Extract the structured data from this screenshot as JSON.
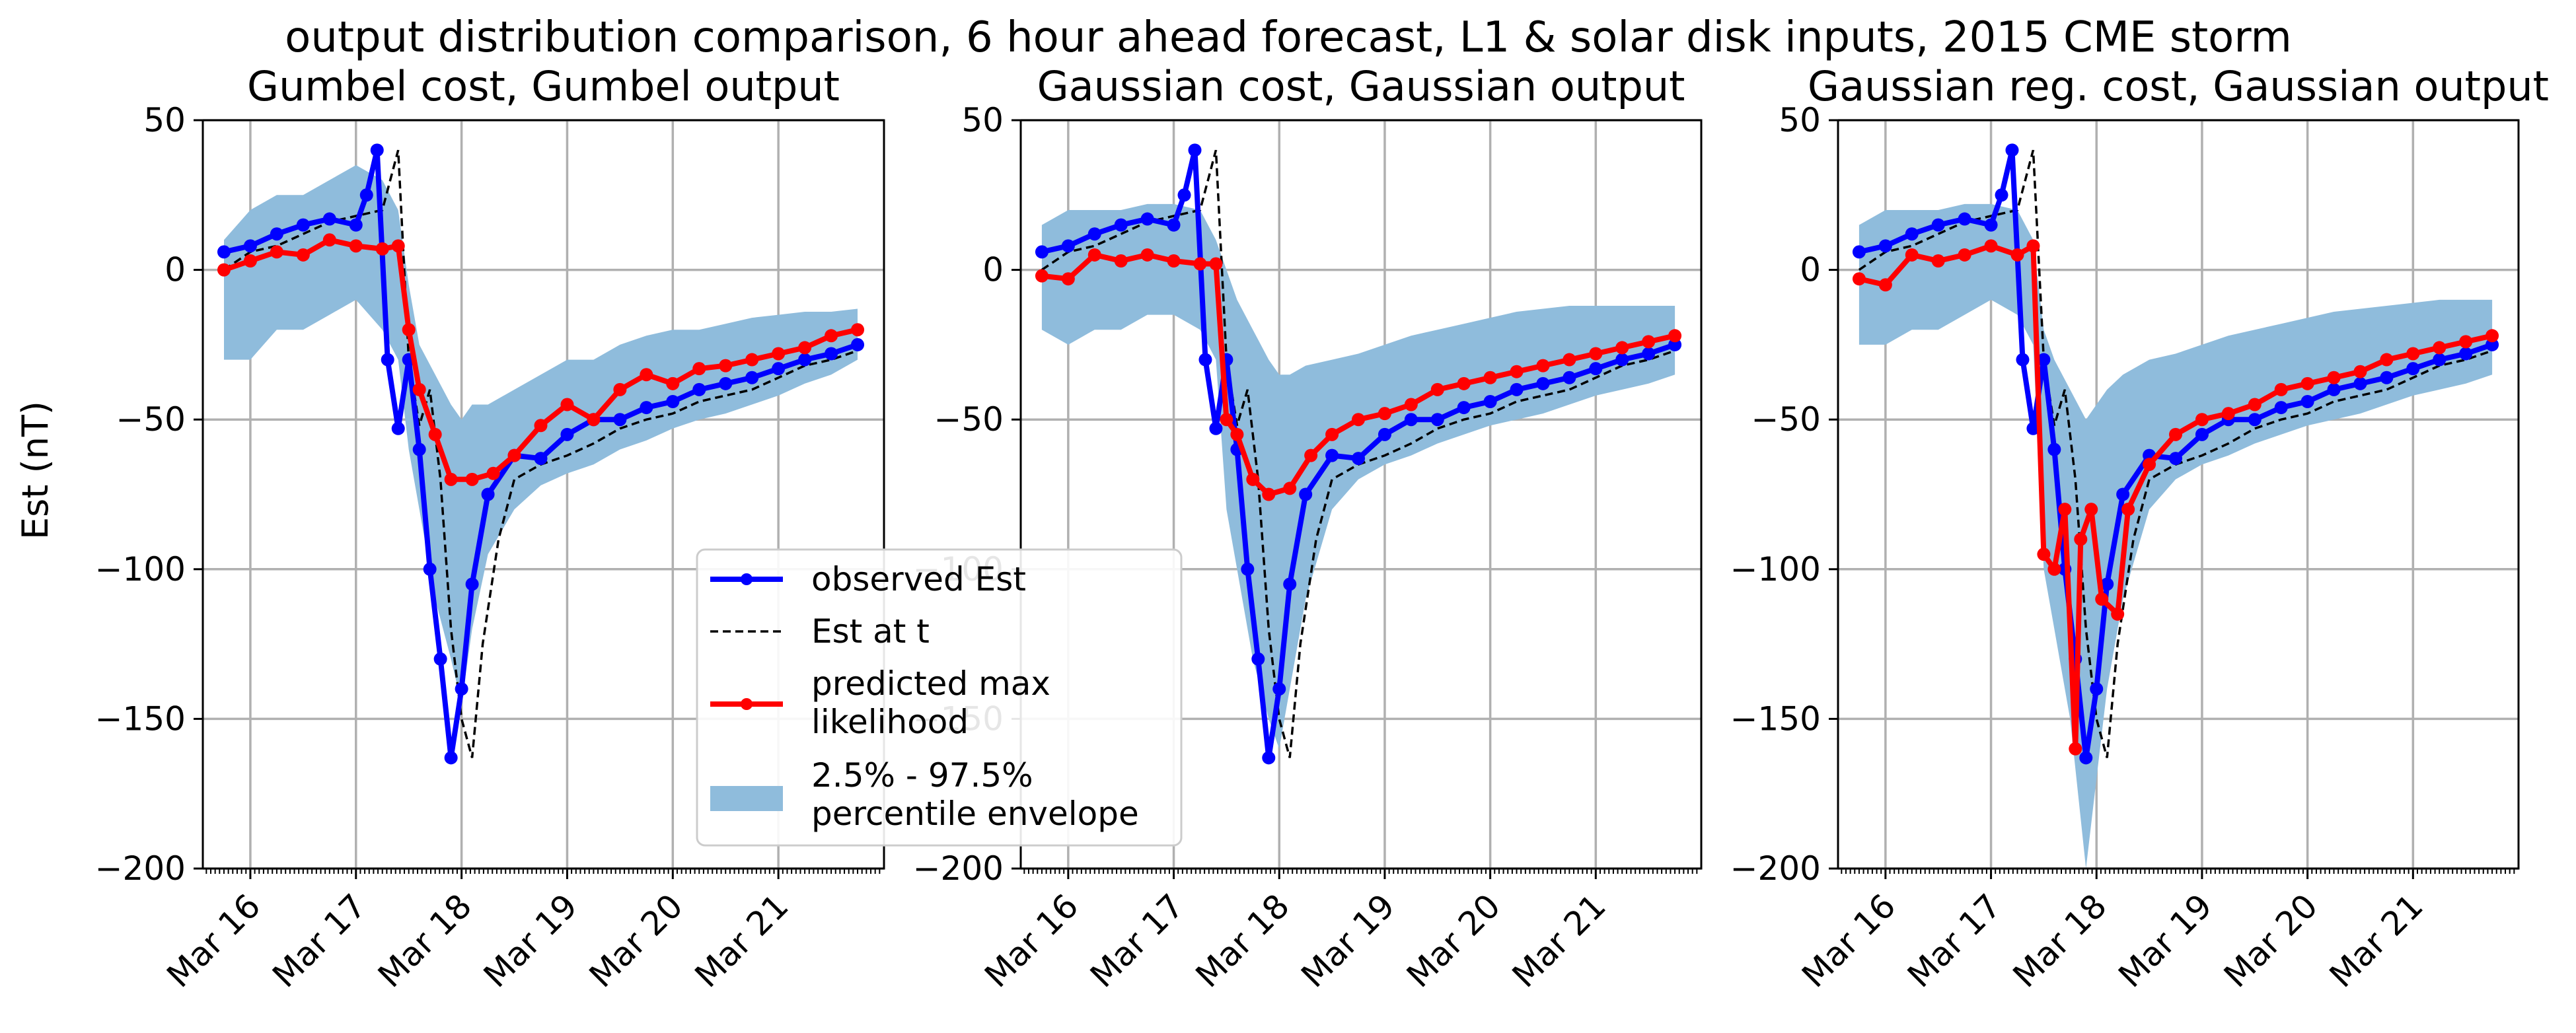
{
  "figure": {
    "title": "output distribution comparison, 6 hour ahead forecast, L1 & solar disk inputs, 2015 CME storm",
    "ylabel": "Est (nT)"
  },
  "legend": {
    "observed": "observed Est",
    "est_at_t": "Est at t",
    "predicted_line1": "predicted max",
    "predicted_line2": "likelihood",
    "envelope_line1": "2.5% - 97.5%",
    "envelope_line2": "percentile envelope"
  },
  "colors": {
    "observed": "#0000ff",
    "predicted": "#ff0000",
    "envelope": "#8fbcdc",
    "est_at_t": "#000000",
    "grid": "#b0b0b0"
  },
  "chart_data": [
    {
      "type": "line",
      "title": "Gumbel cost, Gumbel output",
      "xlabel": "",
      "ylabel": "Est (nT)",
      "ylim": [
        -200,
        50
      ],
      "xlim": [
        15.55,
        22.0
      ],
      "x_tick_values": [
        16,
        17,
        18,
        19,
        20,
        21
      ],
      "x_tick_labels": [
        "Mar 16",
        "Mar 17",
        "Mar 18",
        "Mar 19",
        "Mar 20",
        "Mar 21"
      ],
      "y_ticks": [
        -200,
        -150,
        -100,
        -50,
        0,
        50
      ],
      "grid": true,
      "legend_position": "lower-right",
      "series": [
        {
          "name": "observed Est",
          "x": [
            15.75,
            16.0,
            16.25,
            16.5,
            16.75,
            17.0,
            17.1,
            17.2,
            17.3,
            17.4,
            17.5,
            17.6,
            17.7,
            17.8,
            17.9,
            18.0,
            18.1,
            18.25,
            18.5,
            18.75,
            19.0,
            19.25,
            19.5,
            19.75,
            20.0,
            20.25,
            20.5,
            20.75,
            21.0,
            21.25,
            21.5,
            21.75
          ],
          "y": [
            6,
            8,
            12,
            15,
            17,
            15,
            25,
            40,
            -30,
            -53,
            -30,
            -60,
            -100,
            -130,
            -163,
            -140,
            -105,
            -75,
            -62,
            -63,
            -55,
            -50,
            -50,
            -46,
            -44,
            -40,
            -38,
            -36,
            -33,
            -30,
            -28,
            -25
          ]
        },
        {
          "name": "Est at t",
          "x": [
            15.75,
            16.0,
            16.25,
            16.5,
            16.75,
            17.0,
            17.25,
            17.4,
            17.5,
            17.6,
            17.7,
            17.8,
            17.9,
            18.0,
            18.1,
            18.2,
            18.35,
            18.5,
            18.75,
            19.0,
            19.25,
            19.5,
            19.75,
            20.0,
            20.25,
            20.5,
            20.75,
            21.0,
            21.25,
            21.5,
            21.75
          ],
          "y": [
            0,
            6,
            8,
            12,
            16,
            18,
            20,
            40,
            -30,
            -52,
            -40,
            -70,
            -120,
            -150,
            -163,
            -125,
            -90,
            -70,
            -65,
            -62,
            -58,
            -53,
            -50,
            -48,
            -44,
            -42,
            -40,
            -36,
            -32,
            -30,
            -27
          ]
        },
        {
          "name": "predicted max likelihood",
          "x": [
            15.75,
            16.0,
            16.25,
            16.5,
            16.75,
            17.0,
            17.25,
            17.4,
            17.5,
            17.6,
            17.75,
            17.9,
            18.1,
            18.3,
            18.5,
            18.75,
            19.0,
            19.25,
            19.5,
            19.75,
            20.0,
            20.25,
            20.5,
            20.75,
            21.0,
            21.25,
            21.5,
            21.75
          ],
          "y": [
            0,
            3,
            6,
            5,
            10,
            8,
            7,
            8,
            -20,
            -40,
            -55,
            -70,
            -70,
            -68,
            -62,
            -52,
            -45,
            -50,
            -40,
            -35,
            -38,
            -33,
            -32,
            -30,
            -28,
            -26,
            -22,
            -20
          ]
        },
        {
          "name": "2.5% - 97.5% percentile envelope",
          "x": [
            15.75,
            16.0,
            16.25,
            16.5,
            16.75,
            17.0,
            17.25,
            17.4,
            17.5,
            17.6,
            17.75,
            17.9,
            18.0,
            18.1,
            18.25,
            18.5,
            18.75,
            19.0,
            19.25,
            19.5,
            19.75,
            20.0,
            20.25,
            20.5,
            20.75,
            21.0,
            21.25,
            21.5,
            21.75
          ],
          "y_low": [
            -30,
            -30,
            -20,
            -20,
            -15,
            -10,
            -20,
            -30,
            -60,
            -80,
            -110,
            -130,
            -145,
            -120,
            -95,
            -80,
            -72,
            -68,
            -65,
            -60,
            -57,
            -53,
            -50,
            -48,
            -45,
            -42,
            -38,
            -35,
            -30
          ],
          "y_high": [
            10,
            20,
            25,
            25,
            30,
            35,
            30,
            20,
            -5,
            -25,
            -35,
            -45,
            -50,
            -45,
            -45,
            -40,
            -35,
            -30,
            -30,
            -25,
            -22,
            -20,
            -20,
            -18,
            -16,
            -15,
            -14,
            -14,
            -13
          ]
        }
      ]
    },
    {
      "type": "line",
      "title": "Gaussian cost, Gaussian output",
      "xlabel": "",
      "ylabel": "",
      "ylim": [
        -200,
        50
      ],
      "xlim": [
        15.55,
        22.0
      ],
      "x_tick_values": [
        16,
        17,
        18,
        19,
        20,
        21
      ],
      "x_tick_labels": [
        "Mar 16",
        "Mar 17",
        "Mar 18",
        "Mar 19",
        "Mar 20",
        "Mar 21"
      ],
      "y_ticks": [
        -200,
        -150,
        -100,
        -50,
        0,
        50
      ],
      "grid": true,
      "series": [
        {
          "name": "observed Est",
          "x": [
            15.75,
            16.0,
            16.25,
            16.5,
            16.75,
            17.0,
            17.1,
            17.2,
            17.3,
            17.4,
            17.5,
            17.6,
            17.7,
            17.8,
            17.9,
            18.0,
            18.1,
            18.25,
            18.5,
            18.75,
            19.0,
            19.25,
            19.5,
            19.75,
            20.0,
            20.25,
            20.5,
            20.75,
            21.0,
            21.25,
            21.5,
            21.75
          ],
          "y": [
            6,
            8,
            12,
            15,
            17,
            15,
            25,
            40,
            -30,
            -53,
            -30,
            -60,
            -100,
            -130,
            -163,
            -140,
            -105,
            -75,
            -62,
            -63,
            -55,
            -50,
            -50,
            -46,
            -44,
            -40,
            -38,
            -36,
            -33,
            -30,
            -28,
            -25
          ]
        },
        {
          "name": "Est at t",
          "x": [
            15.75,
            16.0,
            16.25,
            16.5,
            16.75,
            17.0,
            17.25,
            17.4,
            17.5,
            17.6,
            17.7,
            17.8,
            17.9,
            18.0,
            18.1,
            18.2,
            18.35,
            18.5,
            18.75,
            19.0,
            19.25,
            19.5,
            19.75,
            20.0,
            20.25,
            20.5,
            20.75,
            21.0,
            21.25,
            21.5,
            21.75
          ],
          "y": [
            0,
            6,
            8,
            12,
            16,
            18,
            20,
            40,
            -30,
            -52,
            -40,
            -70,
            -120,
            -150,
            -163,
            -125,
            -90,
            -70,
            -65,
            -62,
            -58,
            -53,
            -50,
            -48,
            -44,
            -42,
            -40,
            -36,
            -32,
            -30,
            -27
          ]
        },
        {
          "name": "predicted max likelihood",
          "x": [
            15.75,
            16.0,
            16.25,
            16.5,
            16.75,
            17.0,
            17.25,
            17.4,
            17.5,
            17.6,
            17.75,
            17.9,
            18.1,
            18.3,
            18.5,
            18.75,
            19.0,
            19.25,
            19.5,
            19.75,
            20.0,
            20.25,
            20.5,
            20.75,
            21.0,
            21.25,
            21.5,
            21.75
          ],
          "y": [
            -2,
            -3,
            5,
            3,
            5,
            3,
            2,
            2,
            -50,
            -55,
            -70,
            -75,
            -73,
            -62,
            -55,
            -50,
            -48,
            -45,
            -40,
            -38,
            -36,
            -34,
            -32,
            -30,
            -28,
            -26,
            -24,
            -22
          ]
        },
        {
          "name": "2.5% - 97.5% percentile envelope",
          "x": [
            15.75,
            16.0,
            16.25,
            16.5,
            16.75,
            17.0,
            17.25,
            17.4,
            17.5,
            17.6,
            17.75,
            17.9,
            18.0,
            18.1,
            18.25,
            18.5,
            18.75,
            19.0,
            19.25,
            19.5,
            19.75,
            20.0,
            20.25,
            20.5,
            20.75,
            21.0,
            21.25,
            21.5,
            21.75
          ],
          "y_low": [
            -20,
            -25,
            -20,
            -20,
            -15,
            -15,
            -20,
            -30,
            -80,
            -100,
            -130,
            -150,
            -160,
            -140,
            -110,
            -80,
            -70,
            -65,
            -62,
            -58,
            -55,
            -52,
            -50,
            -48,
            -45,
            -42,
            -40,
            -38,
            -35
          ],
          "y_high": [
            15,
            20,
            20,
            20,
            22,
            22,
            20,
            10,
            0,
            -10,
            -20,
            -30,
            -35,
            -35,
            -32,
            -30,
            -28,
            -25,
            -22,
            -20,
            -18,
            -16,
            -14,
            -13,
            -12,
            -12,
            -12,
            -12,
            -12
          ]
        }
      ]
    },
    {
      "type": "line",
      "title": "Gaussian reg. cost, Gaussian output",
      "xlabel": "",
      "ylabel": "",
      "ylim": [
        -200,
        50
      ],
      "xlim": [
        15.55,
        22.0
      ],
      "x_tick_values": [
        16,
        17,
        18,
        19,
        20,
        21
      ],
      "x_tick_labels": [
        "Mar 16",
        "Mar 17",
        "Mar 18",
        "Mar 19",
        "Mar 20",
        "Mar 21"
      ],
      "y_ticks": [
        -200,
        -150,
        -100,
        -50,
        0,
        50
      ],
      "grid": true,
      "series": [
        {
          "name": "observed Est",
          "x": [
            15.75,
            16.0,
            16.25,
            16.5,
            16.75,
            17.0,
            17.1,
            17.2,
            17.3,
            17.4,
            17.5,
            17.6,
            17.7,
            17.8,
            17.9,
            18.0,
            18.1,
            18.25,
            18.5,
            18.75,
            19.0,
            19.25,
            19.5,
            19.75,
            20.0,
            20.25,
            20.5,
            20.75,
            21.0,
            21.25,
            21.5,
            21.75
          ],
          "y": [
            6,
            8,
            12,
            15,
            17,
            15,
            25,
            40,
            -30,
            -53,
            -30,
            -60,
            -100,
            -130,
            -163,
            -140,
            -105,
            -75,
            -62,
            -63,
            -55,
            -50,
            -50,
            -46,
            -44,
            -40,
            -38,
            -36,
            -33,
            -30,
            -28,
            -25
          ]
        },
        {
          "name": "Est at t",
          "x": [
            15.75,
            16.0,
            16.25,
            16.5,
            16.75,
            17.0,
            17.25,
            17.4,
            17.5,
            17.6,
            17.7,
            17.8,
            17.9,
            18.0,
            18.1,
            18.2,
            18.35,
            18.5,
            18.75,
            19.0,
            19.25,
            19.5,
            19.75,
            20.0,
            20.25,
            20.5,
            20.75,
            21.0,
            21.25,
            21.5,
            21.75
          ],
          "y": [
            0,
            6,
            8,
            12,
            16,
            18,
            20,
            40,
            -30,
            -52,
            -40,
            -70,
            -120,
            -150,
            -163,
            -125,
            -90,
            -70,
            -65,
            -62,
            -58,
            -53,
            -50,
            -48,
            -44,
            -42,
            -40,
            -36,
            -32,
            -30,
            -27
          ]
        },
        {
          "name": "predicted max likelihood",
          "x": [
            15.75,
            16.0,
            16.25,
            16.5,
            16.75,
            17.0,
            17.25,
            17.4,
            17.5,
            17.6,
            17.7,
            17.8,
            17.85,
            17.95,
            18.05,
            18.2,
            18.3,
            18.5,
            18.75,
            19.0,
            19.25,
            19.5,
            19.75,
            20.0,
            20.25,
            20.5,
            20.75,
            21.0,
            21.25,
            21.5,
            21.75
          ],
          "y": [
            -3,
            -5,
            5,
            3,
            5,
            8,
            5,
            8,
            -95,
            -100,
            -80,
            -160,
            -90,
            -80,
            -110,
            -115,
            -80,
            -65,
            -55,
            -50,
            -48,
            -45,
            -40,
            -38,
            -36,
            -34,
            -30,
            -28,
            -26,
            -24,
            -22
          ]
        },
        {
          "name": "2.5% - 97.5% percentile envelope",
          "x": [
            15.75,
            16.0,
            16.25,
            16.5,
            16.75,
            17.0,
            17.25,
            17.4,
            17.5,
            17.6,
            17.75,
            17.9,
            18.0,
            18.1,
            18.25,
            18.5,
            18.75,
            19.0,
            19.25,
            19.5,
            19.75,
            20.0,
            20.25,
            20.5,
            20.75,
            21.0,
            21.25,
            21.5,
            21.75
          ],
          "y_low": [
            -25,
            -25,
            -20,
            -20,
            -15,
            -10,
            -15,
            -25,
            -100,
            -120,
            -150,
            -200,
            -170,
            -140,
            -110,
            -80,
            -70,
            -65,
            -62,
            -58,
            -55,
            -52,
            -50,
            -48,
            -45,
            -42,
            -40,
            -38,
            -35
          ],
          "y_high": [
            15,
            20,
            20,
            20,
            22,
            22,
            20,
            10,
            -20,
            -30,
            -40,
            -50,
            -45,
            -40,
            -35,
            -30,
            -28,
            -25,
            -22,
            -20,
            -18,
            -16,
            -14,
            -13,
            -12,
            -11,
            -10,
            -10,
            -10
          ]
        }
      ]
    }
  ]
}
